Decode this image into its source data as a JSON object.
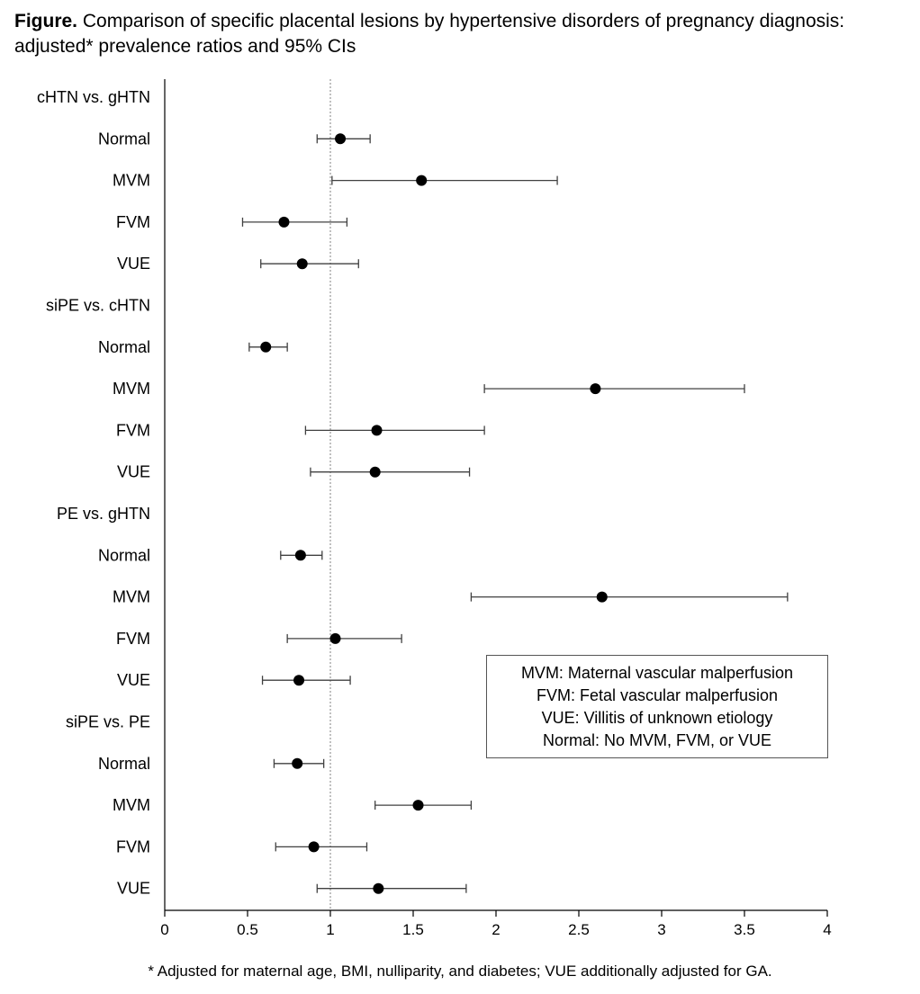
{
  "title": {
    "bold": "Figure.",
    "text": " Comparison of specific placental lesions by hypertensive disorders of pregnancy diagnosis: adjusted* prevalence ratios and 95% CIs"
  },
  "chart_data": {
    "type": "scatter",
    "title": "Figure. Comparison of specific placental lesions by hypertensive disorders of pregnancy diagnosis: adjusted* prevalence ratios and 95% CIs",
    "xlabel": "",
    "ylabel": "",
    "xlim": [
      0,
      4
    ],
    "x_ticks": [
      "0",
      "0.5",
      "1",
      "1.5",
      "2",
      "2.5",
      "3",
      "3.5",
      "4"
    ],
    "reference_line": 1,
    "rows": [
      {
        "label": "cHTN vs. gHTN",
        "header": true
      },
      {
        "label": "Normal",
        "est": 1.06,
        "lo": 0.92,
        "hi": 1.24
      },
      {
        "label": "MVM",
        "est": 1.55,
        "lo": 1.01,
        "hi": 2.37
      },
      {
        "label": "FVM",
        "est": 0.72,
        "lo": 0.47,
        "hi": 1.1
      },
      {
        "label": "VUE",
        "est": 0.83,
        "lo": 0.58,
        "hi": 1.17
      },
      {
        "label": "siPE vs. cHTN",
        "header": true
      },
      {
        "label": "Normal",
        "est": 0.61,
        "lo": 0.51,
        "hi": 0.74
      },
      {
        "label": "MVM",
        "est": 2.6,
        "lo": 1.93,
        "hi": 3.5
      },
      {
        "label": "FVM",
        "est": 1.28,
        "lo": 0.85,
        "hi": 1.93
      },
      {
        "label": "VUE",
        "est": 1.27,
        "lo": 0.88,
        "hi": 1.84
      },
      {
        "label": "PE vs. gHTN",
        "header": true
      },
      {
        "label": "Normal",
        "est": 0.82,
        "lo": 0.7,
        "hi": 0.95
      },
      {
        "label": "MVM",
        "est": 2.64,
        "lo": 1.85,
        "hi": 3.76
      },
      {
        "label": "FVM",
        "est": 1.03,
        "lo": 0.74,
        "hi": 1.43
      },
      {
        "label": "VUE",
        "est": 0.81,
        "lo": 0.59,
        "hi": 1.12
      },
      {
        "label": "siPE vs. PE",
        "header": true
      },
      {
        "label": "Normal",
        "est": 0.8,
        "lo": 0.66,
        "hi": 0.96
      },
      {
        "label": "MVM",
        "est": 1.53,
        "lo": 1.27,
        "hi": 1.85
      },
      {
        "label": "FVM",
        "est": 0.9,
        "lo": 0.67,
        "hi": 1.22
      },
      {
        "label": "VUE",
        "est": 1.29,
        "lo": 0.92,
        "hi": 1.82
      }
    ],
    "legend": [
      "MVM: Maternal vascular malperfusion",
      "FVM: Fetal vascular malperfusion",
      "VUE: Villitis of unknown etiology",
      "Normal: No MVM, FVM, or VUE"
    ],
    "grid": false
  },
  "footnote": "* Adjusted for maternal age, BMI, nulliparity, and diabetes; VUE additionally adjusted for GA.",
  "colors": {
    "marker": "#000000",
    "error_bar": "#404040",
    "reference_line": "#808080",
    "axis": "#000000"
  }
}
